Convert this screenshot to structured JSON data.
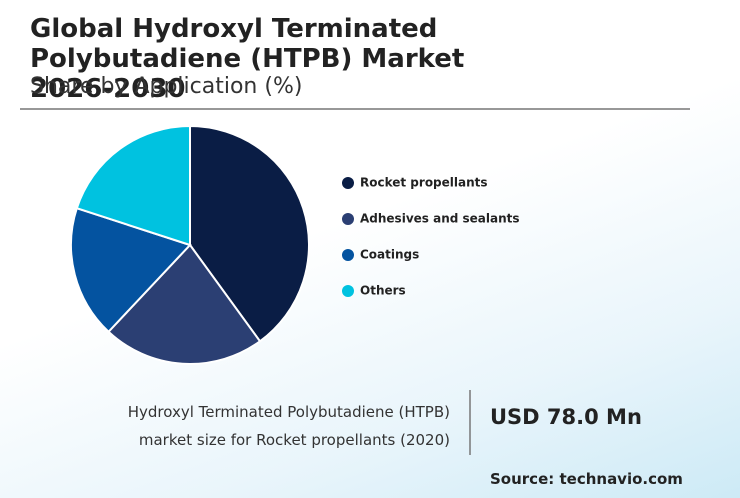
{
  "chart_data": {
    "type": "pie",
    "title": "Global Hydroxyl Terminated Polybutadiene (HTPB) Market 2026-2030",
    "subtitle": "Share by Application (%)",
    "categories": [
      "Rocket propellants",
      "Adhesives and sealants",
      "Coatings",
      "Others"
    ],
    "values": [
      40,
      22,
      18,
      20
    ],
    "colors": [
      "#0a1d45",
      "#2b3f73",
      "#0453a0",
      "#00c2e0"
    ]
  },
  "footer": {
    "description": "Hydroxyl Terminated Polybutadiene (HTPB) market size for Rocket propellants (2020)",
    "market_size": "USD 78.0 Mn",
    "source": "Source: technavio.com"
  }
}
